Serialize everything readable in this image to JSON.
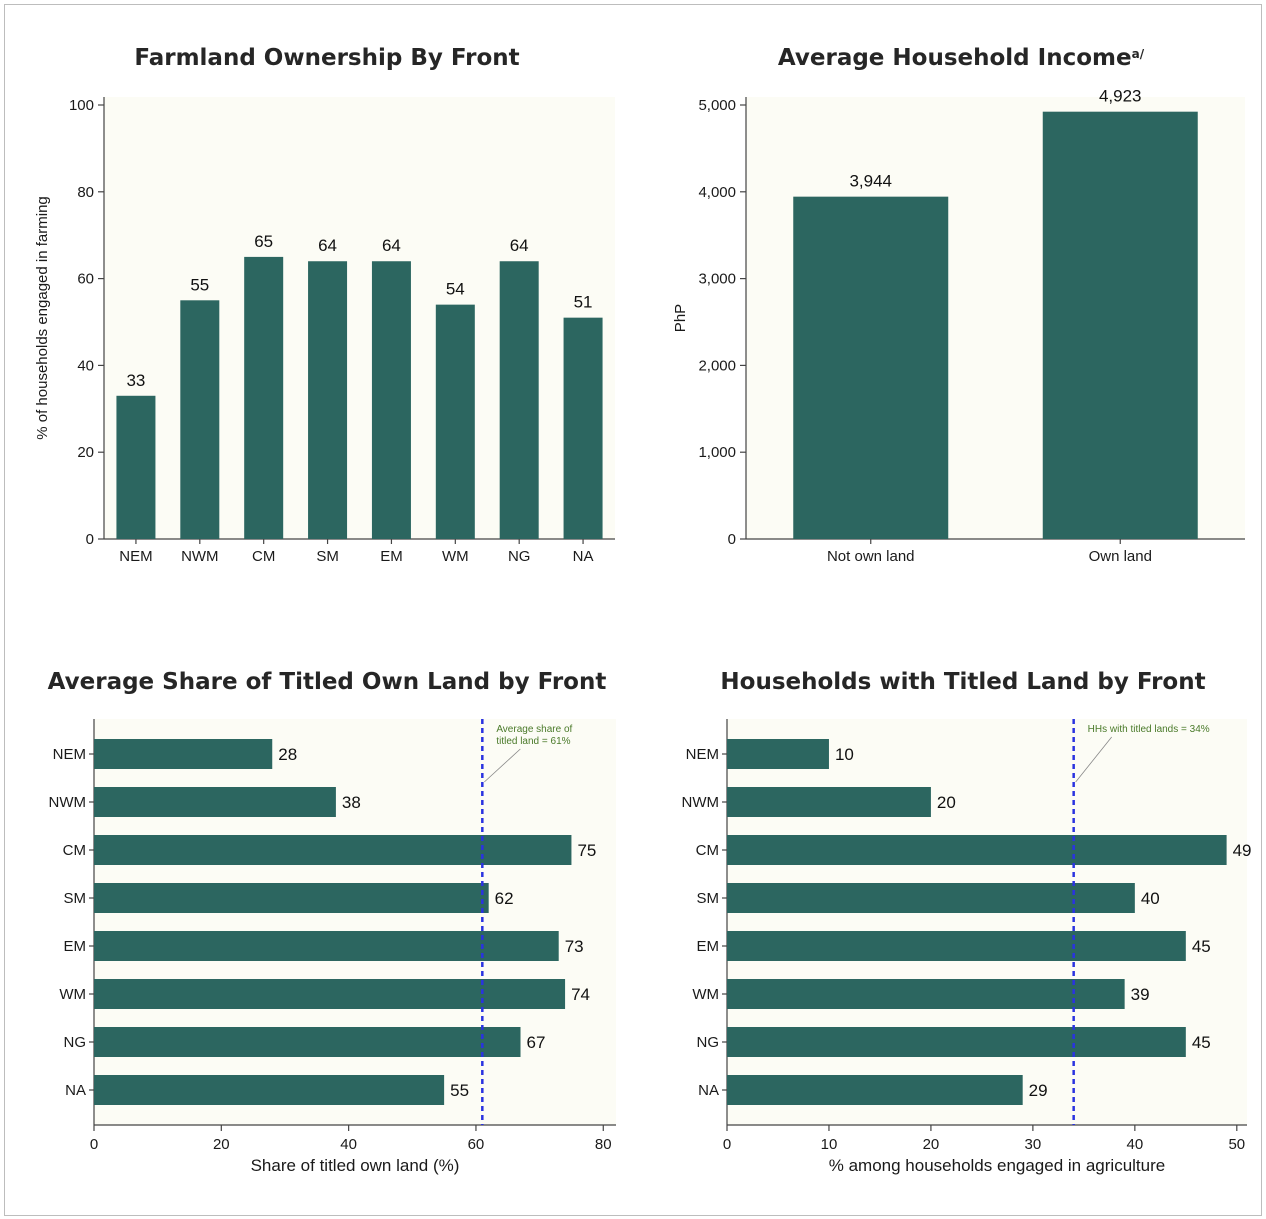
{
  "colors": {
    "bar": "#2c6660",
    "plot_bg": "#fcfcf5",
    "ref_line": "#2a33e0",
    "annotation": "#4a7a2a",
    "axis": "#444444"
  },
  "chart_data": [
    {
      "type": "bar",
      "orientation": "vertical",
      "title": "Farmland Ownership By Front",
      "xlabel": "",
      "ylabel": "% of households engaged in farming",
      "categories": [
        "NEM",
        "NWM",
        "CM",
        "SM",
        "EM",
        "WM",
        "NG",
        "NA"
      ],
      "values": [
        33,
        55,
        65,
        64,
        64,
        54,
        64,
        51
      ],
      "value_labels": [
        "33",
        "55",
        "65",
        "64",
        "64",
        "54",
        "64",
        "51"
      ],
      "ylim": [
        0,
        100
      ],
      "yticks": [
        0,
        20,
        40,
        60,
        80,
        100
      ],
      "ytick_labels": [
        "0",
        "20",
        "40",
        "60",
        "80",
        "100"
      ],
      "grid": false
    },
    {
      "type": "bar",
      "orientation": "vertical",
      "title": "Average Household Income",
      "title_superscript": "a/",
      "xlabel": "",
      "ylabel": "PhP",
      "categories": [
        "Not own land",
        "Own land"
      ],
      "values": [
        3944,
        4923
      ],
      "value_labels": [
        "3,944",
        "4,923"
      ],
      "ylim": [
        0,
        5000
      ],
      "yticks": [
        0,
        1000,
        2000,
        3000,
        4000,
        5000
      ],
      "ytick_labels": [
        "0",
        "1,000",
        "2,000",
        "3,000",
        "4,000",
        "5,000"
      ],
      "grid": false
    },
    {
      "type": "bar",
      "orientation": "horizontal",
      "title": "Average Share of Titled Own Land by Front",
      "xlabel": "Share of titled own land (%)",
      "ylabel": "",
      "categories": [
        "NEM",
        "NWM",
        "CM",
        "SM",
        "EM",
        "WM",
        "NG",
        "NA"
      ],
      "values": [
        28,
        38,
        75,
        62,
        73,
        74,
        67,
        55
      ],
      "value_labels": [
        "28",
        "38",
        "75",
        "62",
        "73",
        "74",
        "67",
        "55"
      ],
      "xlim": [
        0,
        82
      ],
      "xticks": [
        0,
        20,
        40,
        60,
        80
      ],
      "xtick_labels": [
        "0",
        "20",
        "40",
        "60",
        "80"
      ],
      "reference_line": {
        "value": 61,
        "label_lines": [
          "Average share of",
          "titled land = 61%"
        ]
      },
      "grid": false
    },
    {
      "type": "bar",
      "orientation": "horizontal",
      "title": "Households with Titled Land by Front",
      "xlabel": "% among households engaged in agriculture",
      "ylabel": "",
      "categories": [
        "NEM",
        "NWM",
        "CM",
        "SM",
        "EM",
        "WM",
        "NG",
        "NA"
      ],
      "values": [
        10,
        20,
        49,
        40,
        45,
        39,
        45,
        29
      ],
      "value_labels": [
        "10",
        "20",
        "49",
        "40",
        "45",
        "39",
        "45",
        "29"
      ],
      "xlim": [
        0,
        51
      ],
      "xticks": [
        0,
        10,
        20,
        30,
        40,
        50
      ],
      "xtick_labels": [
        "0",
        "10",
        "20",
        "30",
        "40",
        "50"
      ],
      "reference_line": {
        "value": 34,
        "label_lines": [
          "HHs with titled lands = 34%"
        ]
      },
      "grid": false
    }
  ]
}
